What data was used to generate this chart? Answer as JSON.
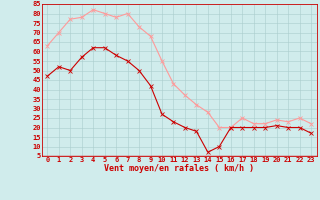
{
  "x": [
    0,
    1,
    2,
    3,
    4,
    5,
    6,
    7,
    8,
    9,
    10,
    11,
    12,
    13,
    14,
    15,
    16,
    17,
    18,
    19,
    20,
    21,
    22,
    23
  ],
  "wind_avg": [
    47,
    52,
    50,
    57,
    62,
    62,
    58,
    55,
    50,
    42,
    27,
    23,
    20,
    18,
    7,
    10,
    20,
    20,
    20,
    20,
    21,
    20,
    20,
    17
  ],
  "wind_gust": [
    63,
    70,
    77,
    78,
    82,
    80,
    78,
    80,
    73,
    68,
    55,
    43,
    37,
    32,
    28,
    20,
    20,
    25,
    22,
    22,
    24,
    23,
    25,
    22
  ],
  "avg_color": "#cc0000",
  "gust_color": "#ff9999",
  "background_color": "#d0ecec",
  "grid_color": "#aacccc",
  "xlabel": "Vent moyen/en rafales ( km/h )",
  "xlabel_color": "#cc0000",
  "ylim": [
    5,
    85
  ],
  "xlim": [
    -0.5,
    23.5
  ],
  "yticks": [
    5,
    10,
    15,
    20,
    25,
    30,
    35,
    40,
    45,
    50,
    55,
    60,
    65,
    70,
    75,
    80,
    85
  ],
  "xticks": [
    0,
    1,
    2,
    3,
    4,
    5,
    6,
    7,
    8,
    9,
    10,
    11,
    12,
    13,
    14,
    15,
    16,
    17,
    18,
    19,
    20,
    21,
    22,
    23
  ],
  "tick_fontsize": 5,
  "xlabel_fontsize": 6,
  "line_width": 0.8,
  "marker_size": 2.5
}
